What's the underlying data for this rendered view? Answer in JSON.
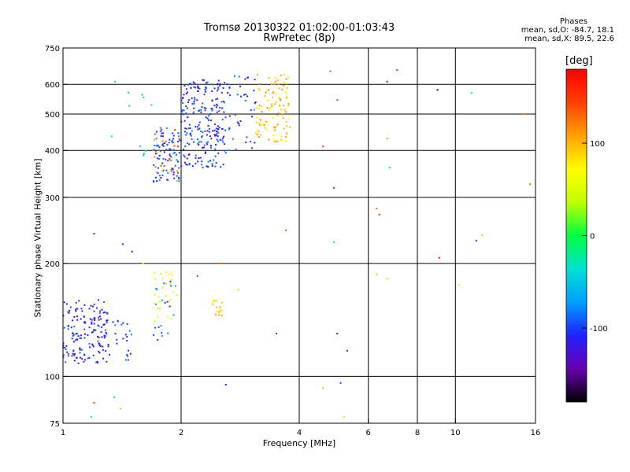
{
  "title_line1": "Tromsø 20130322 01:02:00-01:03:43",
  "title_line2": "RwPretec (8p)",
  "stats": {
    "heading": "Phases",
    "line1": "mean, sd,O: -84.7, 18.1",
    "line2": "mean, sd,X:  89.5, 22.6"
  },
  "colorbar": {
    "unit": "[deg]",
    "ticks": [
      100,
      0,
      -100
    ],
    "range": [
      -180,
      180
    ],
    "colors": [
      "#000000",
      "#6a00b0",
      "#2020ff",
      "#00a0ff",
      "#00e0d0",
      "#00ff40",
      "#c0ff00",
      "#ffff00",
      "#ffa000",
      "#ff4000",
      "#ff0000"
    ]
  },
  "chart_data": {
    "type": "scatter",
    "xlabel": "Frequency [MHz]",
    "ylabel": "Stationary phase Virtual Height [km]",
    "xscale": "log",
    "yscale": "log",
    "xlim": [
      1,
      16
    ],
    "ylim": [
      75,
      750
    ],
    "xticks": [
      1,
      2,
      4,
      6,
      8,
      10,
      16
    ],
    "xgrid": [
      2,
      4,
      6,
      8,
      10
    ],
    "yticks": [
      75,
      100,
      200,
      300,
      400,
      500,
      600,
      750
    ],
    "ygrid": [
      100,
      200,
      300,
      400,
      500,
      600
    ],
    "color_variable": "phase [deg]",
    "clusters": [
      {
        "f": [
          1.0,
          1.3
        ],
        "h": [
          108,
          160
        ],
        "phase": -110,
        "n": 160
      },
      {
        "f": [
          1.3,
          1.5
        ],
        "h": [
          110,
          145
        ],
        "phase": -100,
        "n": 25
      },
      {
        "f": [
          1.7,
          2.0
        ],
        "h": [
          330,
          460
        ],
        "phase": -100,
        "n": 90
      },
      {
        "f": [
          1.7,
          2.0
        ],
        "h": [
          330,
          460
        ],
        "phase": 130,
        "n": 25
      },
      {
        "f": [
          2.0,
          2.6
        ],
        "h": [
          360,
          620
        ],
        "phase": -105,
        "n": 230
      },
      {
        "f": [
          2.6,
          3.1
        ],
        "h": [
          400,
          640
        ],
        "phase": -100,
        "n": 40
      },
      {
        "f": [
          3.1,
          3.8
        ],
        "h": [
          420,
          640
        ],
        "phase": 95,
        "n": 110
      },
      {
        "f": [
          1.7,
          1.95
        ],
        "h": [
          140,
          190
        ],
        "phase": 60,
        "n": 30
      },
      {
        "f": [
          1.7,
          1.95
        ],
        "h": [
          125,
          180
        ],
        "phase": -90,
        "n": 20
      },
      {
        "f": [
          2.4,
          2.55
        ],
        "h": [
          145,
          160
        ],
        "phase": 90,
        "n": 18
      },
      {
        "f": [
          1.3,
          1.7
        ],
        "h": [
          380,
          620
        ],
        "phase": -40,
        "n": 12
      }
    ],
    "points": [
      {
        "f": 4.8,
        "h": 650,
        "phase": 140
      },
      {
        "f": 5.0,
        "h": 545,
        "phase": 140
      },
      {
        "f": 6.7,
        "h": 610,
        "phase": -120
      },
      {
        "f": 7.1,
        "h": 655,
        "phase": 150
      },
      {
        "f": 9.0,
        "h": 580,
        "phase": -160
      },
      {
        "f": 11.0,
        "h": 570,
        "phase": -20
      },
      {
        "f": 15.0,
        "h": 500,
        "phase": 120
      },
      {
        "f": 15.5,
        "h": 325,
        "phase": 130
      },
      {
        "f": 4.6,
        "h": 410,
        "phase": 150
      },
      {
        "f": 4.9,
        "h": 318,
        "phase": -100
      },
      {
        "f": 6.4,
        "h": 270,
        "phase": 160
      },
      {
        "f": 6.3,
        "h": 280,
        "phase": 130
      },
      {
        "f": 6.8,
        "h": 360,
        "phase": -30
      },
      {
        "f": 6.7,
        "h": 430,
        "phase": 120
      },
      {
        "f": 4.9,
        "h": 228,
        "phase": -10
      },
      {
        "f": 9.1,
        "h": 207,
        "phase": 170
      },
      {
        "f": 11.3,
        "h": 230,
        "phase": -100
      },
      {
        "f": 11.7,
        "h": 238,
        "phase": 100
      },
      {
        "f": 6.3,
        "h": 187,
        "phase": 20
      },
      {
        "f": 6.7,
        "h": 182,
        "phase": 30
      },
      {
        "f": 10.2,
        "h": 175,
        "phase": 80
      },
      {
        "f": 5.0,
        "h": 130,
        "phase": -130
      },
      {
        "f": 5.3,
        "h": 117,
        "phase": -120
      },
      {
        "f": 4.6,
        "h": 93,
        "phase": 100
      },
      {
        "f": 5.1,
        "h": 96,
        "phase": -100
      },
      {
        "f": 5.2,
        "h": 78,
        "phase": 90
      },
      {
        "f": 3.5,
        "h": 130,
        "phase": -100
      },
      {
        "f": 2.8,
        "h": 170,
        "phase": 100
      },
      {
        "f": 2.6,
        "h": 95,
        "phase": -120
      },
      {
        "f": 3.7,
        "h": 245,
        "phase": 140
      },
      {
        "f": 1.2,
        "h": 85,
        "phase": 160
      },
      {
        "f": 1.18,
        "h": 78,
        "phase": -20
      },
      {
        "f": 1.35,
        "h": 88,
        "phase": -40
      },
      {
        "f": 1.4,
        "h": 82,
        "phase": 100
      },
      {
        "f": 1.2,
        "h": 240,
        "phase": -120
      },
      {
        "f": 1.42,
        "h": 225,
        "phase": -110
      },
      {
        "f": 1.6,
        "h": 200,
        "phase": 60
      },
      {
        "f": 1.5,
        "h": 215,
        "phase": -130
      },
      {
        "f": 2.2,
        "h": 185,
        "phase": 150
      },
      {
        "f": 2.5,
        "h": 200,
        "phase": 130
      }
    ]
  }
}
